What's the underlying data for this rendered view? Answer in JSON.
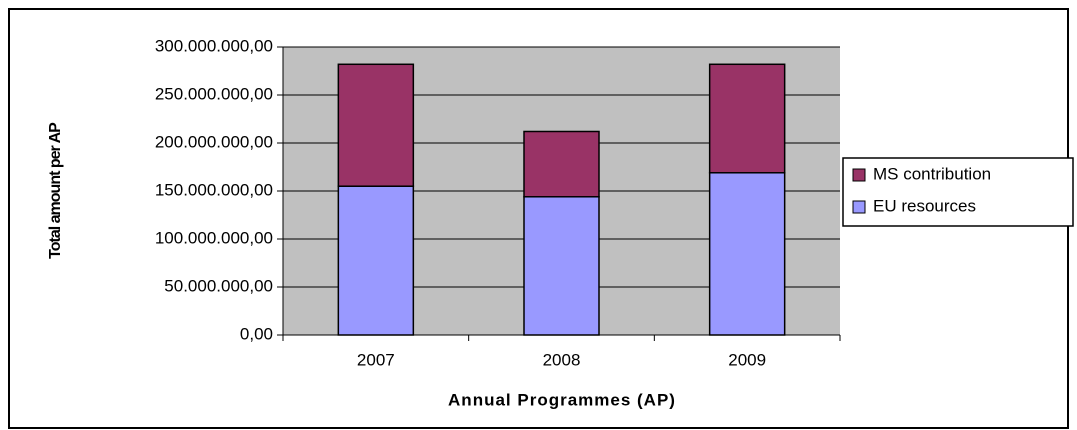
{
  "chart_data": {
    "type": "bar",
    "stacked": true,
    "x_label": "Annual Programmes (AP)",
    "y_label": "Total amount per AP",
    "categories": [
      "2007",
      "2008",
      "2009"
    ],
    "series": [
      {
        "name": "EU resources",
        "color": "#9999ff",
        "values": [
          155000000,
          144000000,
          169000000
        ]
      },
      {
        "name": "MS contribution",
        "color": "#993366",
        "values": [
          127000000,
          68000000,
          113000000
        ]
      }
    ],
    "ylim": [
      0,
      300000000
    ],
    "yticks": [
      {
        "value": 0,
        "label": "0,00"
      },
      {
        "value": 50000000,
        "label": "50.000.000,00"
      },
      {
        "value": 100000000,
        "label": "100.000.000,00"
      },
      {
        "value": 150000000,
        "label": "150.000.000,00"
      },
      {
        "value": 200000000,
        "label": "200.000.000,00"
      },
      {
        "value": 250000000,
        "label": "250.000.000,00"
      },
      {
        "value": 300000000,
        "label": "300.000.000,00"
      }
    ],
    "grid": true,
    "legend": "right",
    "plot_background": "#c0c0c0"
  }
}
